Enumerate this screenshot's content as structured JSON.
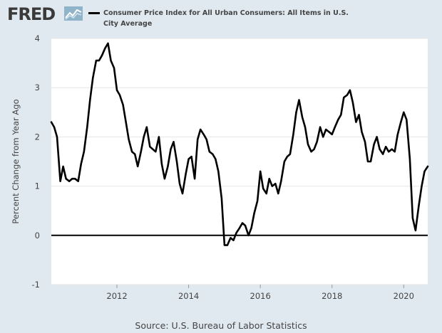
{
  "brand": {
    "logo_text": "FRED"
  },
  "source": "Source: U.S. Bureau of Labor Statistics",
  "colors": {
    "background": "#e1e9f0",
    "plot_background": "#ffffff",
    "series": "#000000",
    "gridline": "#e6e6e6"
  },
  "chart_data": {
    "type": "line",
    "title": "",
    "xlabel": "",
    "ylabel": "Percent Change from Year Ago",
    "ylim": [
      -1,
      4
    ],
    "xlim": [
      2010.17,
      2020.67
    ],
    "xticks": [
      2012,
      2014,
      2016,
      2018,
      2020
    ],
    "xtick_labels": [
      "2012",
      "2014",
      "2016",
      "2018",
      "2020"
    ],
    "yticks": [
      -1,
      0,
      1,
      2,
      3,
      4
    ],
    "ytick_labels": [
      "-1",
      "0",
      "1",
      "2",
      "3",
      "4"
    ],
    "grid": "horizontal",
    "legend_position": "top",
    "series": [
      {
        "name": "Consumer Price Index for All Urban Consumers: All Items in U.S. City Average",
        "x": [
          2010.17,
          2010.25,
          2010.33,
          2010.42,
          2010.5,
          2010.58,
          2010.67,
          2010.75,
          2010.83,
          2010.92,
          2011.0,
          2011.08,
          2011.17,
          2011.25,
          2011.33,
          2011.42,
          2011.5,
          2011.58,
          2011.67,
          2011.75,
          2011.83,
          2011.92,
          2012.0,
          2012.08,
          2012.17,
          2012.25,
          2012.33,
          2012.42,
          2012.5,
          2012.58,
          2012.67,
          2012.75,
          2012.83,
          2012.92,
          2013.0,
          2013.08,
          2013.17,
          2013.25,
          2013.33,
          2013.42,
          2013.5,
          2013.58,
          2013.67,
          2013.75,
          2013.83,
          2013.92,
          2014.0,
          2014.08,
          2014.17,
          2014.25,
          2014.33,
          2014.42,
          2014.5,
          2014.58,
          2014.67,
          2014.75,
          2014.83,
          2014.92,
          2015.0,
          2015.08,
          2015.17,
          2015.25,
          2015.33,
          2015.42,
          2015.5,
          2015.58,
          2015.67,
          2015.75,
          2015.83,
          2015.92,
          2016.0,
          2016.08,
          2016.17,
          2016.25,
          2016.33,
          2016.42,
          2016.5,
          2016.58,
          2016.67,
          2016.75,
          2016.83,
          2016.92,
          2017.0,
          2017.08,
          2017.17,
          2017.25,
          2017.33,
          2017.42,
          2017.5,
          2017.58,
          2017.67,
          2017.75,
          2017.83,
          2017.92,
          2018.0,
          2018.08,
          2018.17,
          2018.25,
          2018.33,
          2018.42,
          2018.5,
          2018.58,
          2018.67,
          2018.75,
          2018.83,
          2018.92,
          2019.0,
          2019.08,
          2019.17,
          2019.25,
          2019.33,
          2019.42,
          2019.5,
          2019.58,
          2019.67,
          2019.75,
          2019.83,
          2019.92,
          2020.0,
          2020.08,
          2020.17,
          2020.25,
          2020.33,
          2020.42,
          2020.5,
          2020.58,
          2020.67
        ],
        "values": [
          2.3,
          2.2,
          2.0,
          1.1,
          1.4,
          1.15,
          1.1,
          1.15,
          1.15,
          1.1,
          1.45,
          1.7,
          2.2,
          2.75,
          3.2,
          3.55,
          3.55,
          3.65,
          3.8,
          3.9,
          3.55,
          3.4,
          2.95,
          2.85,
          2.65,
          2.3,
          1.95,
          1.7,
          1.65,
          1.4,
          1.7,
          2.0,
          2.2,
          1.8,
          1.75,
          1.7,
          2.0,
          1.45,
          1.15,
          1.4,
          1.75,
          1.9,
          1.5,
          1.05,
          0.85,
          1.25,
          1.55,
          1.6,
          1.15,
          1.95,
          2.15,
          2.05,
          1.95,
          1.7,
          1.65,
          1.55,
          1.3,
          0.75,
          -0.2,
          -0.2,
          -0.05,
          -0.1,
          0.05,
          0.15,
          0.25,
          0.2,
          0.0,
          0.15,
          0.45,
          0.7,
          1.3,
          0.95,
          0.85,
          1.15,
          1.0,
          1.05,
          0.85,
          1.1,
          1.5,
          1.6,
          1.65,
          2.05,
          2.5,
          2.75,
          2.4,
          2.2,
          1.85,
          1.7,
          1.75,
          1.9,
          2.2,
          2.0,
          2.15,
          2.1,
          2.05,
          2.2,
          2.35,
          2.45,
          2.8,
          2.85,
          2.95,
          2.7,
          2.3,
          2.45,
          2.1,
          1.9,
          1.5,
          1.5,
          1.85,
          2.0,
          1.75,
          1.65,
          1.8,
          1.7,
          1.75,
          1.7,
          2.05,
          2.3,
          2.5,
          2.35,
          1.55,
          0.35,
          0.1,
          0.6,
          1.0,
          1.3,
          1.4
        ]
      }
    ]
  }
}
